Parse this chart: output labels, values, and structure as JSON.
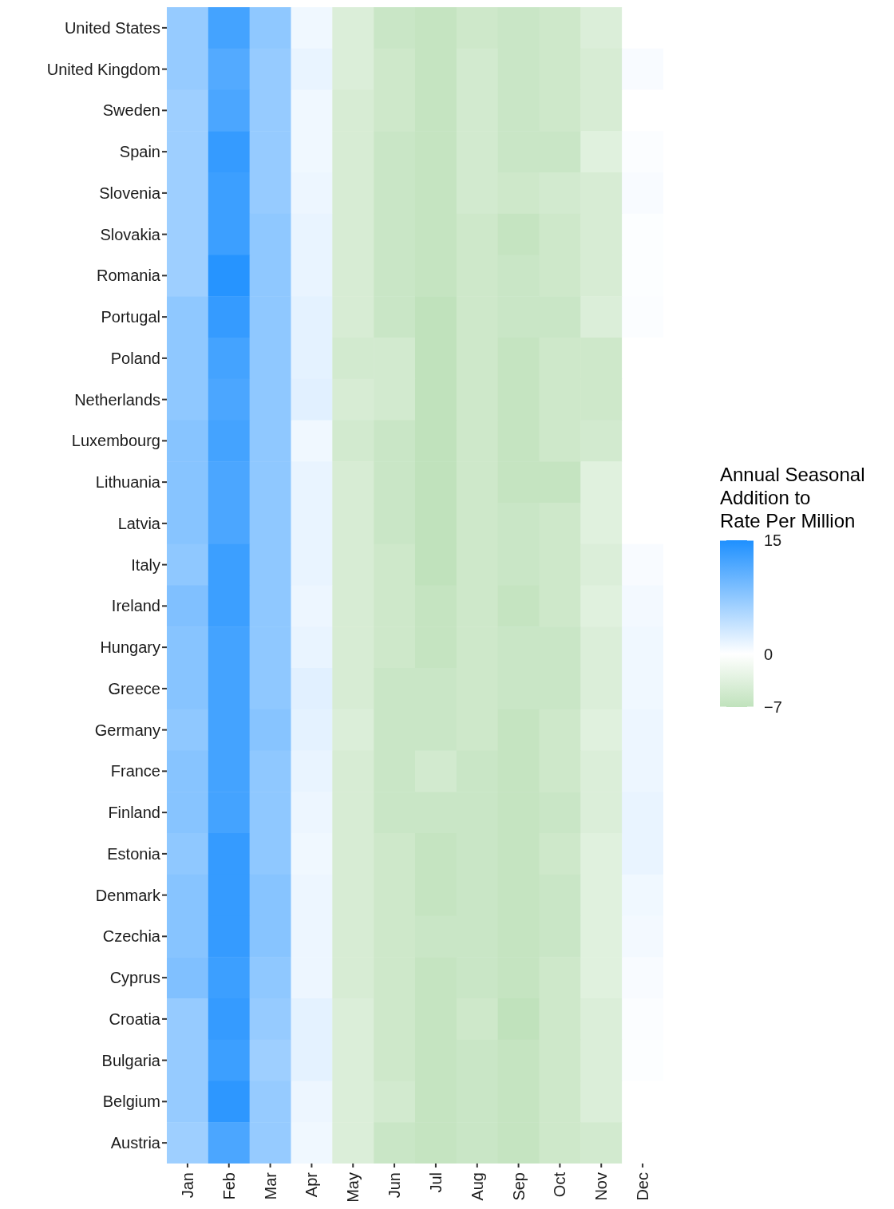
{
  "chart_data": {
    "type": "heatmap",
    "legend_title": "Annual Seasonal\nAddition to\nRate Per Million",
    "categories": [
      "Jan",
      "Feb",
      "Mar",
      "Apr",
      "May",
      "Jun",
      "Jul",
      "Aug",
      "Sep",
      "Oct",
      "Nov",
      "Dec"
    ],
    "y_categories": [
      "United States",
      "United Kingdom",
      "Sweden",
      "Spain",
      "Slovenia",
      "Slovakia",
      "Romania",
      "Portugal",
      "Poland",
      "Netherlands",
      "Luxembourg",
      "Lithuania",
      "Latvia",
      "Italy",
      "Ireland",
      "Hungary",
      "Greece",
      "Germany",
      "France",
      "Finland",
      "Estonia",
      "Denmark",
      "Czechia",
      "Cyprus",
      "Croatia",
      "Bulgaria",
      "Belgium",
      "Austria"
    ],
    "cells": [
      [
        7,
        12.5,
        7.5,
        1,
        -4,
        -6,
        -6.5,
        -5.5,
        -6,
        -5.5,
        -4,
        0
      ],
      [
        7,
        11.5,
        7,
        1.5,
        -4,
        -5.5,
        -6.5,
        -5,
        -6,
        -5.5,
        -4.5,
        0.5
      ],
      [
        6.5,
        12,
        7,
        1,
        -4.5,
        -5.5,
        -6.5,
        -5,
        -6,
        -5.5,
        -4.5,
        0
      ],
      [
        6.5,
        13.5,
        7,
        1,
        -4.5,
        -6,
        -6.5,
        -5,
        -6,
        -6,
        -3.5,
        0.3
      ],
      [
        6.5,
        13,
        7,
        1.2,
        -4.5,
        -6,
        -6.5,
        -5,
        -5.5,
        -5,
        -4.5,
        0.5
      ],
      [
        6.5,
        13,
        7.5,
        1.5,
        -4.5,
        -6,
        -6.5,
        -5.5,
        -6.5,
        -5.5,
        -4.5,
        0.2
      ],
      [
        6.5,
        14.5,
        7.5,
        1.5,
        -4.5,
        -6,
        -6.5,
        -5.5,
        -6,
        -5.5,
        -4.5,
        0.2
      ],
      [
        7.5,
        13.5,
        7.5,
        1.8,
        -4.5,
        -6,
        -7,
        -5.5,
        -6,
        -6,
        -4,
        0.3
      ],
      [
        7.5,
        12.5,
        7.5,
        1.8,
        -5,
        -5,
        -7,
        -5.5,
        -6.5,
        -5.5,
        -5.5,
        0
      ],
      [
        7.5,
        12,
        7.5,
        2,
        -4.5,
        -5,
        -7,
        -5.5,
        -6.5,
        -5.5,
        -5.5,
        0
      ],
      [
        8,
        12.5,
        7.5,
        1,
        -5,
        -6,
        -7,
        -5.5,
        -6.5,
        -5.5,
        -5,
        0
      ],
      [
        8,
        12,
        7.5,
        1.5,
        -4.5,
        -6,
        -7,
        -5.5,
        -6.5,
        -6.5,
        -3.5,
        0
      ],
      [
        8,
        12,
        7.5,
        1.5,
        -4.5,
        -6,
        -7,
        -5.5,
        -6,
        -5.5,
        -3.5,
        0
      ],
      [
        7.5,
        13,
        7.5,
        1.5,
        -4.5,
        -5.5,
        -7,
        -5.5,
        -6,
        -5.5,
        -4,
        0.5
      ],
      [
        8.5,
        13,
        7.5,
        1.2,
        -4.5,
        -5.5,
        -6.5,
        -5.5,
        -6.5,
        -5.5,
        -3.5,
        0.8
      ],
      [
        8,
        12.5,
        7.5,
        1.5,
        -4.5,
        -5.5,
        -6.5,
        -5.5,
        -6,
        -6,
        -4,
        1
      ],
      [
        8,
        12.5,
        7.5,
        2,
        -4.5,
        -6,
        -6,
        -5.5,
        -6,
        -6,
        -4,
        1
      ],
      [
        7.5,
        12.5,
        8,
        1.8,
        -4,
        -6,
        -6,
        -5.5,
        -6.5,
        -5.5,
        -3.5,
        1.2
      ],
      [
        8,
        12.5,
        7.5,
        1.5,
        -4.5,
        -6,
        -5,
        -6,
        -6.5,
        -5.5,
        -4,
        1.2
      ],
      [
        8,
        12.5,
        7.5,
        1.2,
        -4.5,
        -6,
        -6,
        -6,
        -6.5,
        -6,
        -4,
        1.5
      ],
      [
        7.5,
        13.5,
        7.5,
        1,
        -4.5,
        -5.5,
        -6.5,
        -6,
        -6.5,
        -5.5,
        -3.5,
        1.5
      ],
      [
        8,
        13.5,
        8,
        1.2,
        -4.5,
        -5.5,
        -6.5,
        -6,
        -6.5,
        -6,
        -3.5,
        1
      ],
      [
        8,
        13.5,
        8,
        1.2,
        -4.5,
        -5.5,
        -6,
        -6,
        -6.5,
        -6,
        -3.5,
        0.8
      ],
      [
        8.5,
        13,
        7.5,
        1.2,
        -4.5,
        -5.5,
        -6.5,
        -6,
        -6.5,
        -5.5,
        -3.5,
        0.5
      ],
      [
        7,
        13.5,
        7,
        1.8,
        -4,
        -5.5,
        -6.5,
        -5.5,
        -7,
        -5.5,
        -4,
        0.3
      ],
      [
        7,
        13,
        6.5,
        1.8,
        -4,
        -5.5,
        -6.5,
        -6,
        -6.5,
        -5.5,
        -4,
        0.2
      ],
      [
        7,
        14,
        7,
        1.2,
        -4,
        -5,
        -6.5,
        -6,
        -6.5,
        -5.5,
        -4,
        0
      ],
      [
        6.5,
        12,
        7,
        1,
        -4,
        -6,
        -6.5,
        -6,
        -6.5,
        -5.5,
        -5,
        0
      ]
    ],
    "colors": [
      "#c0e2bc",
      "#ffffff",
      "#1e90ff"
    ],
    "clim": [
      -7,
      15
    ],
    "cticks": [
      -7,
      0,
      15
    ]
  }
}
